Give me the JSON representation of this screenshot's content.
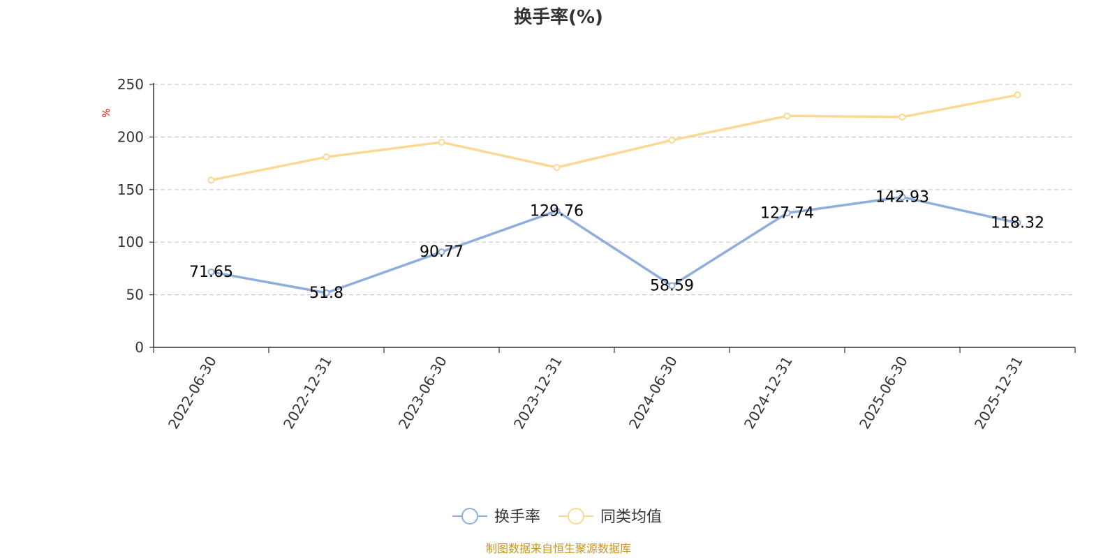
{
  "chart_data": {
    "type": "line",
    "title": "换手率(%)",
    "ylabel": "%",
    "ylim": [
      0,
      250
    ],
    "yticks": [
      0,
      50,
      100,
      150,
      200,
      250
    ],
    "grid": true,
    "legend_position": "bottom-center",
    "categories": [
      "2022-06-30",
      "2022-12-31",
      "2023-06-30",
      "2023-12-31",
      "2024-06-30",
      "2024-12-31",
      "2025-06-30",
      "2025-12-31"
    ],
    "series": [
      {
        "name": "换手率",
        "color": "#8eaedb",
        "values": [
          71.65,
          51.8,
          90.77,
          129.76,
          58.59,
          127.74,
          142.93,
          118.32
        ],
        "labels": [
          "71.65",
          "51.8",
          "90.77",
          "129.76",
          "58.59",
          "127.74",
          "142.93",
          "118.32"
        ]
      },
      {
        "name": "同类均值",
        "color": "#fcd993",
        "values": [
          159,
          181,
          195,
          171,
          197,
          220,
          219,
          240
        ]
      }
    ]
  },
  "source_text": "制图数据来自恒生聚源数据库"
}
